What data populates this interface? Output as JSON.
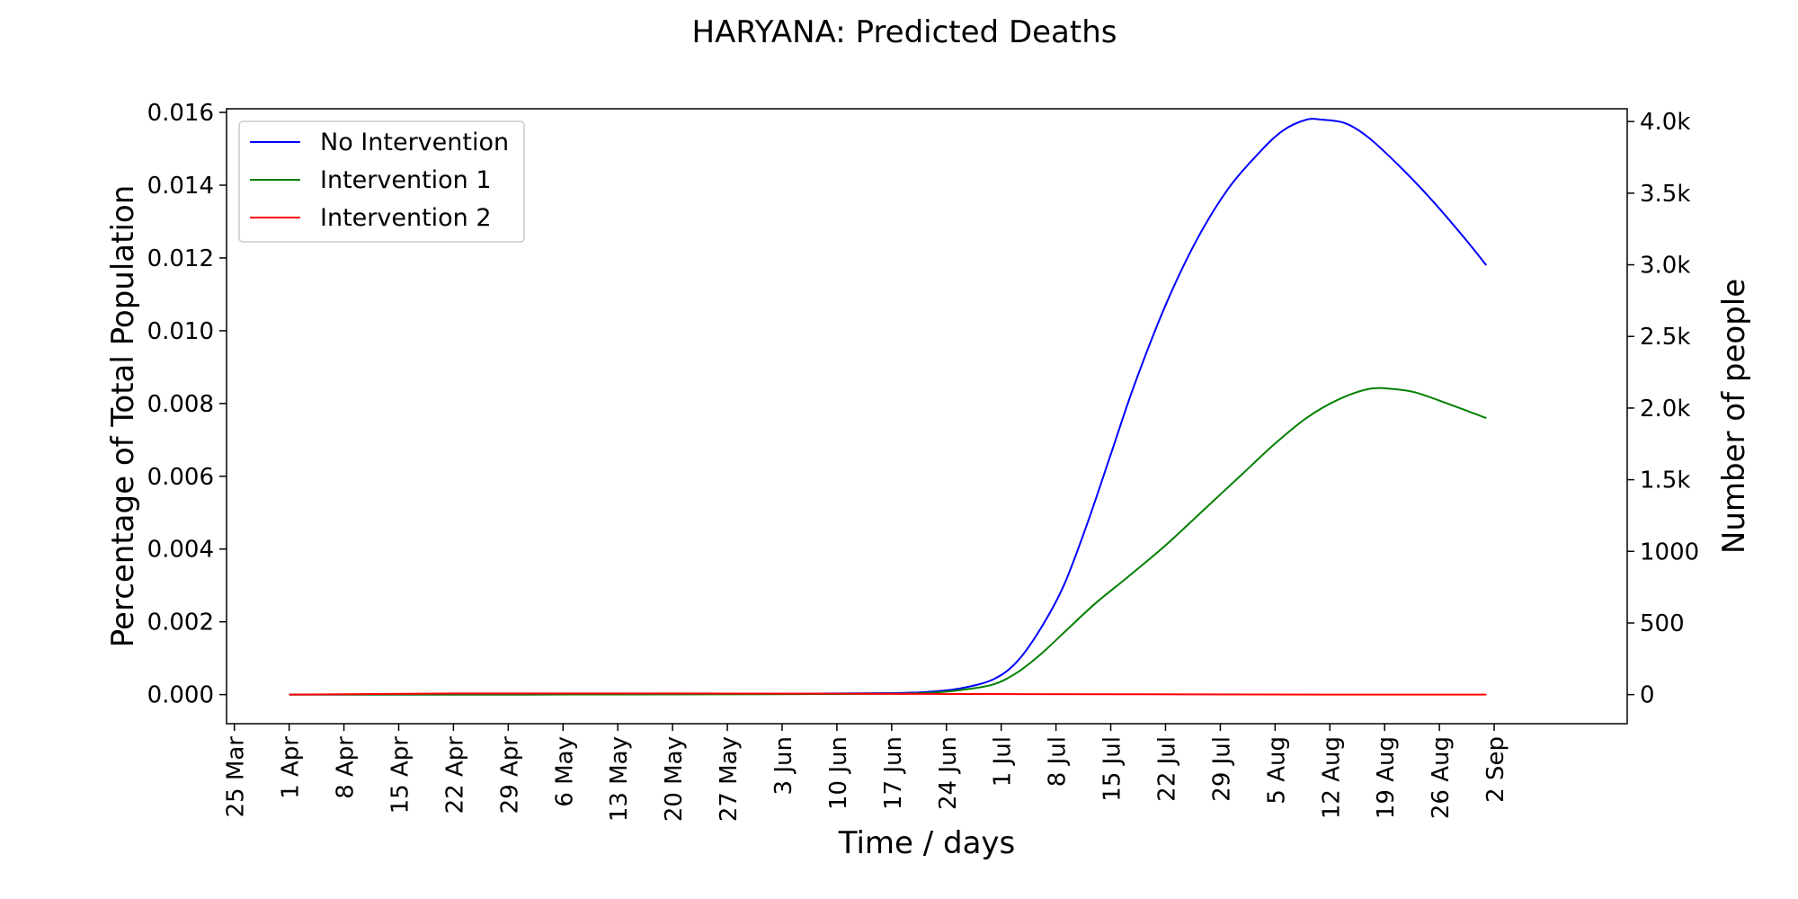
{
  "chart_data": {
    "type": "line",
    "title": "HARYANA: Predicted Deaths",
    "xlabel": "Time / days",
    "ylabel": "Percentage of Total Population",
    "ylabel_right": "Number of people",
    "ylim": [
      -0.0008,
      0.0161
    ],
    "ylim_right": [
      -203,
      4089
    ],
    "yticks": [
      0.0,
      0.002,
      0.004,
      0.006,
      0.008,
      0.01,
      0.012,
      0.014,
      0.016
    ],
    "ytick_labels": [
      "0.000",
      "0.002",
      "0.004",
      "0.006",
      "0.008",
      "0.010",
      "0.012",
      "0.014",
      "0.016"
    ],
    "yticks_right": [
      0,
      500,
      1000,
      1500,
      2000,
      2500,
      3000,
      3500,
      4000
    ],
    "ytick_labels_right": [
      "0",
      "500",
      "1000",
      "1.5k",
      "2.0k",
      "2.5k",
      "3.0k",
      "3.5k",
      "4.0k"
    ],
    "xlim": [
      "2020-03-24",
      "2020-09-19"
    ],
    "xticks": [
      "2020-03-25",
      "2020-04-01",
      "2020-04-08",
      "2020-04-15",
      "2020-04-22",
      "2020-04-29",
      "2020-05-06",
      "2020-05-13",
      "2020-05-20",
      "2020-05-27",
      "2020-06-03",
      "2020-06-10",
      "2020-06-17",
      "2020-06-24",
      "2020-07-01",
      "2020-07-08",
      "2020-07-15",
      "2020-07-22",
      "2020-07-29",
      "2020-08-05",
      "2020-08-12",
      "2020-08-19",
      "2020-08-26",
      "2020-09-02"
    ],
    "xtick_labels": [
      "25 Mar",
      "1 Apr",
      "8 Apr",
      "15 Apr",
      "22 Apr",
      "29 Apr",
      "6 May",
      "13 May",
      "20 May",
      "27 May",
      "3 Jun",
      "10 Jun",
      "17 Jun",
      "24 Jun",
      "1 Jul",
      "8 Jul",
      "15 Jul",
      "22 Jul",
      "29 Jul",
      "5 Aug",
      "12 Aug",
      "19 Aug",
      "26 Aug",
      "2 Sep"
    ],
    "legend_position": "top-left",
    "grid": false,
    "series": [
      {
        "name": "No Intervention",
        "color": "#0000ff",
        "x": [
          "2020-04-01",
          "2020-05-01",
          "2020-06-01",
          "2020-06-17",
          "2020-06-22",
          "2020-06-26",
          "2020-06-30",
          "2020-07-03",
          "2020-07-06",
          "2020-07-09",
          "2020-07-12",
          "2020-07-15",
          "2020-07-18",
          "2020-07-22",
          "2020-07-26",
          "2020-07-30",
          "2020-08-03",
          "2020-08-06",
          "2020-08-09",
          "2020-08-11",
          "2020-08-14",
          "2020-08-17",
          "2020-08-21",
          "2020-08-25",
          "2020-08-29",
          "2020-09-01"
        ],
        "values": [
          0.0,
          0.0,
          2e-05,
          4e-05,
          8e-05,
          0.00018,
          0.00042,
          0.0009,
          0.0018,
          0.003,
          0.0047,
          0.0066,
          0.0085,
          0.0107,
          0.0125,
          0.0139,
          0.0149,
          0.0155,
          0.0158,
          0.0158,
          0.0157,
          0.0153,
          0.0145,
          0.0136,
          0.0126,
          0.0118
        ]
      },
      {
        "name": "Intervention 1",
        "color": "#008000",
        "x": [
          "2020-04-01",
          "2020-05-01",
          "2020-06-01",
          "2020-06-17",
          "2020-06-22",
          "2020-06-26",
          "2020-06-30",
          "2020-07-03",
          "2020-07-06",
          "2020-07-09",
          "2020-07-13",
          "2020-07-17",
          "2020-07-22",
          "2020-07-27",
          "2020-08-01",
          "2020-08-05",
          "2020-08-09",
          "2020-08-13",
          "2020-08-17",
          "2020-08-20",
          "2020-08-23",
          "2020-08-27",
          "2020-09-01"
        ],
        "values": [
          0.0,
          0.0,
          1e-05,
          2e-05,
          5e-05,
          0.00013,
          0.00028,
          0.0006,
          0.0011,
          0.0017,
          0.0025,
          0.0032,
          0.0041,
          0.0051,
          0.0061,
          0.0069,
          0.0076,
          0.0081,
          0.0084,
          0.0084,
          0.0083,
          0.008,
          0.0076
        ]
      },
      {
        "name": "Intervention 2",
        "color": "#ff0000",
        "x": [
          "2020-04-01",
          "2020-04-22",
          "2020-04-29",
          "2020-05-20",
          "2020-06-17",
          "2020-07-15",
          "2020-08-12",
          "2020-09-01"
        ],
        "values": [
          0.0,
          3e-05,
          3e-05,
          3e-05,
          2e-05,
          1e-05,
          0.0,
          0.0
        ]
      }
    ]
  }
}
